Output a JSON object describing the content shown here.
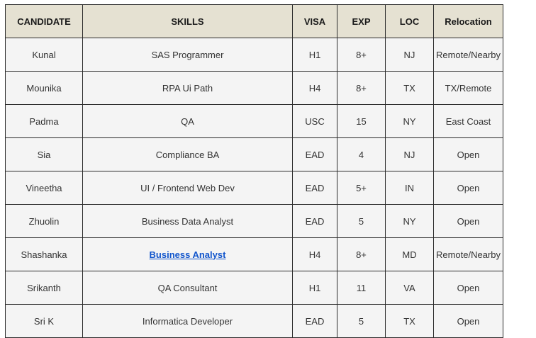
{
  "columns": [
    "CANDIDATE",
    "SKILLS",
    "VISA",
    "EXP",
    "LOC",
    "Relocation"
  ],
  "rows": [
    {
      "candidate": "Kunal",
      "skill": "SAS Programmer",
      "visa": "H1",
      "exp": "8+",
      "loc": "NJ",
      "relocation": "Remote/Nearby"
    },
    {
      "candidate": "Mounika",
      "skill": "RPA Ui Path",
      "visa": "H4",
      "exp": "8+",
      "loc": "TX",
      "relocation": "TX/Remote"
    },
    {
      "candidate": "Padma",
      "skill": "QA",
      "visa": "USC",
      "exp": "15",
      "loc": "NY",
      "relocation": "East Coast"
    },
    {
      "candidate": "Sia",
      "skill": "Compliance BA",
      "visa": "EAD",
      "exp": "4",
      "loc": "NJ",
      "relocation": "Open"
    },
    {
      "candidate": "Vineetha",
      "skill": "UI / Frontend Web Dev",
      "visa": "EAD",
      "exp": "5+",
      "loc": "IN",
      "relocation": "Open"
    },
    {
      "candidate": "Zhuolin",
      "skill": "Business Data Analyst",
      "visa": "EAD",
      "exp": "5",
      "loc": "NY",
      "relocation": "Open"
    },
    {
      "candidate": "Shashanka",
      "skill": "Business Analyst",
      "visa": "H4",
      "exp": "8+",
      "loc": "MD",
      "relocation": "Remote/Nearby",
      "skill_is_link": true
    },
    {
      "candidate": "Srikanth",
      "skill": "QA Consultant",
      "visa": "H1",
      "exp": "11",
      "loc": "VA",
      "relocation": "Open"
    },
    {
      "candidate": "Sri K",
      "skill": "Informatica Developer",
      "visa": "EAD",
      "exp": "5",
      "loc": "TX",
      "relocation": "Open"
    }
  ],
  "colors": {
    "header_bg": "#e5e1d2",
    "cell_bg": "#f4f4f4",
    "border": "#2b2b2b",
    "link": "#1155cc"
  }
}
